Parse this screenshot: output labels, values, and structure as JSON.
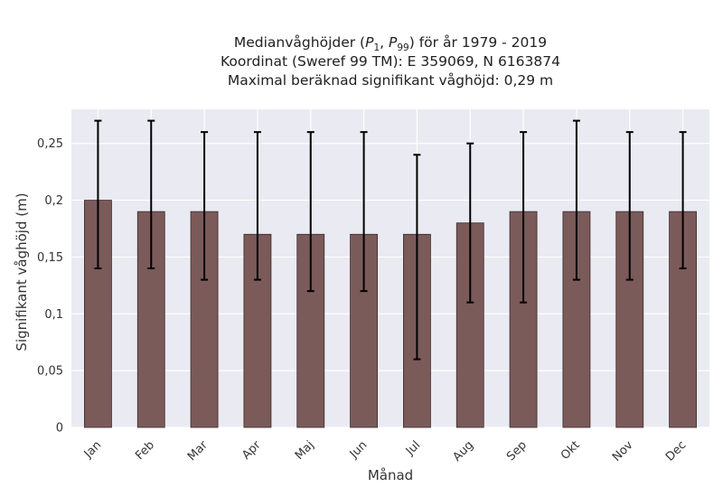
{
  "chart_data": {
    "type": "bar",
    "title_lines": [
      "Medianvåghöjder (P1, P99) för år 1979 - 2019",
      "Koordinat (Sweref 99 TM): E 359069, N 6163874",
      "Maximal beräknad signifikant våghöjd: 0,29 m"
    ],
    "xlabel": "Månad",
    "ylabel": "Signifikant våghöjd (m)",
    "categories": [
      "Jan",
      "Feb",
      "Mar",
      "Apr",
      "Maj",
      "Jun",
      "Jul",
      "Aug",
      "Sep",
      "Okt",
      "Nov",
      "Dec"
    ],
    "values": [
      0.2,
      0.19,
      0.19,
      0.17,
      0.17,
      0.17,
      0.17,
      0.18,
      0.19,
      0.19,
      0.19,
      0.19
    ],
    "p1": [
      0.14,
      0.14,
      0.13,
      0.13,
      0.12,
      0.12,
      0.06,
      0.11,
      0.11,
      0.13,
      0.13,
      0.14
    ],
    "p99": [
      0.27,
      0.27,
      0.26,
      0.26,
      0.26,
      0.26,
      0.24,
      0.25,
      0.26,
      0.27,
      0.26,
      0.26
    ],
    "ylim": [
      0,
      0.28
    ],
    "yticks": [
      0,
      0.05,
      0.1,
      0.15,
      0.2,
      0.25
    ],
    "ytick_labels": [
      "0",
      "0,05",
      "0,1",
      "0,15",
      "0,2",
      "0,25"
    ],
    "grid": true,
    "colors": {
      "bar": "#7b5a5a",
      "bar_edge": "#3a2a2a",
      "errorbar": "#000000",
      "plot_bg": "#eaeaf2",
      "grid": "#ffffff"
    }
  }
}
